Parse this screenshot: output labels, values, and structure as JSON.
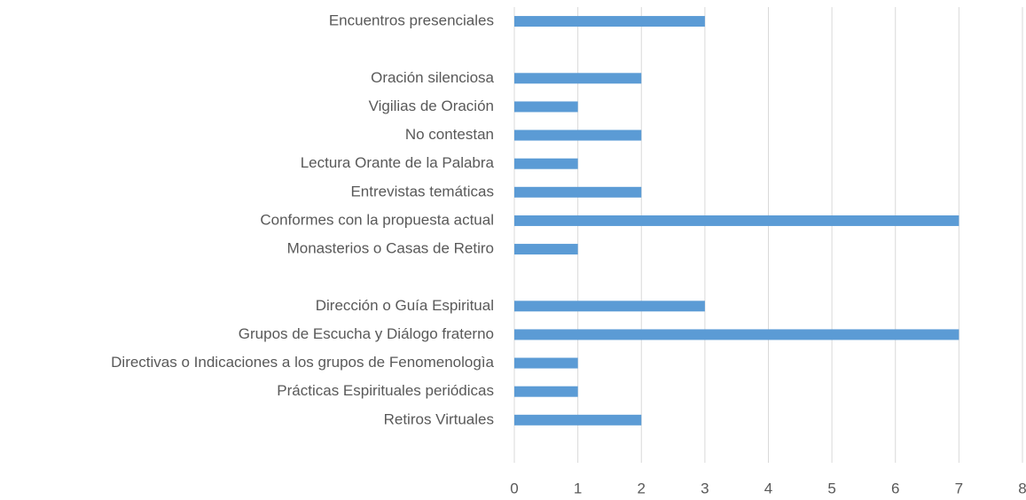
{
  "chart_data": {
    "type": "bar",
    "orientation": "horizontal",
    "categories": [
      "Encuentros presenciales",
      null,
      "Oración silenciosa",
      "Vigilias de Oración",
      "No contestan",
      "Lectura Orante de la Palabra",
      "Entrevistas temáticas",
      "Conformes con la propuesta actual",
      "Monasterios o Casas de Retiro",
      null,
      "Dirección o Guía Espiritual",
      "Grupos de Escucha y Diálogo fraterno",
      "Directivas o Indicaciones a los grupos de Fenomenologìa",
      "Prácticas Espirituales periódicas",
      "Retiros Virtuales",
      null
    ],
    "values": [
      3,
      null,
      2,
      1,
      2,
      1,
      2,
      7,
      1,
      null,
      3,
      7,
      1,
      1,
      2,
      null
    ],
    "color": "#5b9bd5",
    "xlim": [
      0,
      8
    ],
    "xticks": [
      0,
      1,
      2,
      3,
      4,
      5,
      6,
      7,
      8
    ],
    "grid": true
  }
}
